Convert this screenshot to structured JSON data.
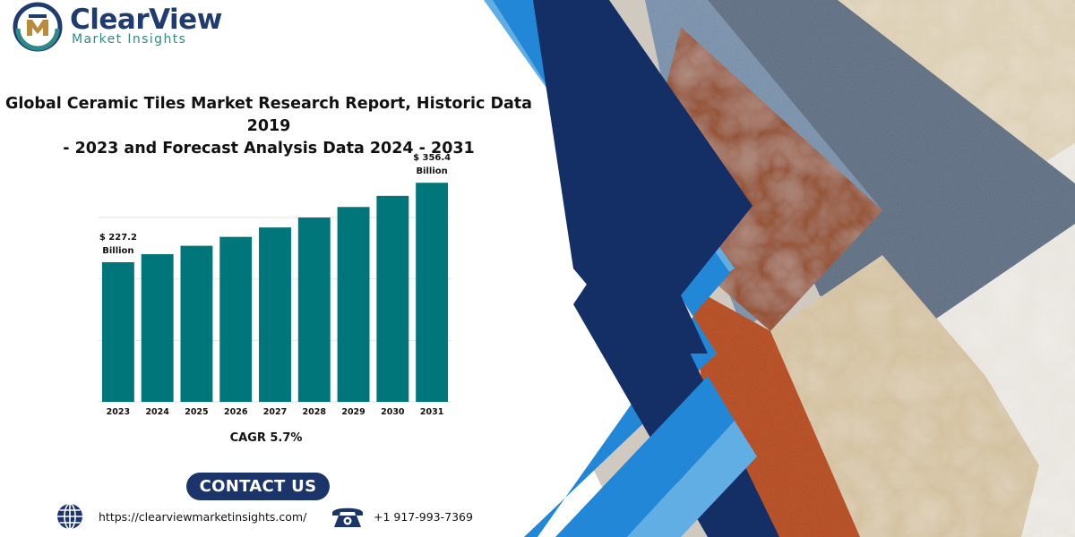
{
  "brand": {
    "name": "ClearView",
    "tagline": "Market Insights",
    "primary_color": "#1f3b70",
    "accent_color": "#2e8a86"
  },
  "report_title_line1": "Global Ceramic Tiles Market Research Report, Historic Data 2019",
  "report_title_line2": "- 2023 and Forecast Analysis Data 2024 - 2031",
  "chart_data": {
    "type": "bar",
    "categories": [
      "2023",
      "2024",
      "2025",
      "2026",
      "2027",
      "2028",
      "2029",
      "2030",
      "2031"
    ],
    "values": [
      227.2,
      240.2,
      253.9,
      268.4,
      283.7,
      299.9,
      317.0,
      335.1,
      356.4
    ],
    "unit": "Billion",
    "bar_color": "#00767a",
    "grid": true,
    "ylim": [
      0,
      380
    ],
    "annotations": [
      {
        "index": 0,
        "line1": "$ 227.2",
        "line2": "Billion"
      },
      {
        "index": 8,
        "line1": "$ 356.4",
        "line2": "Billion"
      }
    ]
  },
  "cagr_label": "CAGR 5.7%",
  "contact_button": "CONTACT US",
  "footer": {
    "website": "https://clearviewmarketinsights.com/",
    "phone": "+1 917-993-7369"
  },
  "icons": [
    "logo-mark-icon",
    "globe-icon",
    "telephone-icon"
  ],
  "decor_colors": {
    "navy": "#142e66",
    "blue": "#2187d6",
    "light_blue": "#61aee4"
  }
}
